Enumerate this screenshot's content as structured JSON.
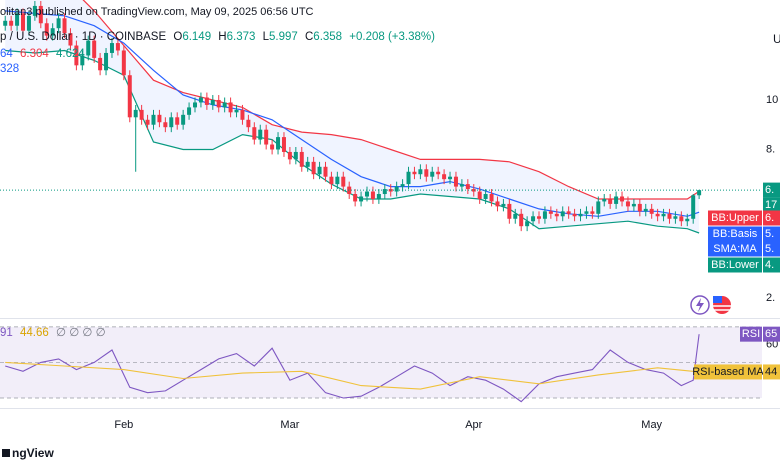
{
  "header": {
    "byline": "olitan3 published on TradingView.com, May 09, 2025 06:56 UTC",
    "symbol": "p / U.S. Dollar · 1D · COINBASE",
    "ohlc_labels": [
      "O",
      "H",
      "L",
      "C"
    ],
    "change": "+0.208 (+3.38%)",
    "bb_basis_value": "64",
    "sma_value": "328",
    "rsi_value": "91",
    "rsi_na": "∅ ∅ ∅ ∅",
    "currency": "U"
  },
  "footer": {
    "brand": "ngView"
  },
  "chart_data": [
    {
      "type": "candlestick",
      "open": [
        13.0,
        13.2,
        13.0,
        13.5,
        12.8,
        13.4,
        13.8,
        13.1,
        12.6,
        12.9,
        13.3,
        12.7,
        12.2,
        11.4,
        11.8,
        12.4,
        11.7,
        11.2,
        11.9,
        12.3,
        12.0,
        11.0,
        9.3,
        9.6,
        9.2,
        9.0,
        9.4,
        9.1,
        8.9,
        9.3,
        9.0,
        9.4,
        9.7,
        9.9,
        10.1,
        9.8,
        10.0,
        9.7,
        9.9,
        9.5,
        9.6,
        9.2,
        8.9,
        8.4,
        8.8,
        8.2,
        8.0,
        8.5,
        7.9,
        7.6,
        7.9,
        7.3,
        7.5,
        7.0,
        7.3,
        6.9,
        6.6,
        6.9,
        6.5,
        6.2,
        5.9,
        6.1,
        6.3,
        6.0,
        6.2,
        6.4,
        6.3,
        6.5,
        6.6,
        7.1,
        7.0,
        7.2,
        6.9,
        7.1,
        7.0,
        6.8,
        6.9,
        6.5,
        6.6,
        6.4,
        6.3,
        6.0,
        6.2,
        5.9,
        5.7,
        5.8,
        5.2,
        5.4,
        4.9,
        5.1,
        5.3,
        5.2,
        5.5,
        5.4,
        5.3,
        5.5,
        5.4,
        5.3,
        5.4,
        5.5,
        5.4,
        5.9,
        6.0,
        5.8,
        6.1,
        5.9,
        5.7,
        5.8,
        5.5,
        5.6,
        5.4,
        5.3,
        5.4,
        5.2,
        5.3,
        5.1,
        5.2,
        6.149
      ],
      "high": [
        13.4,
        13.4,
        13.7,
        13.7,
        13.6,
        14.0,
        14.0,
        13.3,
        13.1,
        13.5,
        13.5,
        12.9,
        12.4,
        12.0,
        12.6,
        12.6,
        11.9,
        12.1,
        12.5,
        12.5,
        12.2,
        11.2,
        9.8,
        9.8,
        9.4,
        9.6,
        9.6,
        9.3,
        9.5,
        9.5,
        9.6,
        9.9,
        10.1,
        10.3,
        10.3,
        10.2,
        10.2,
        10.1,
        10.1,
        9.8,
        9.8,
        9.4,
        9.1,
        9.0,
        9.0,
        8.4,
        8.7,
        8.7,
        8.1,
        8.1,
        8.1,
        7.7,
        7.7,
        7.5,
        7.5,
        7.1,
        7.1,
        7.1,
        6.7,
        6.4,
        6.3,
        6.5,
        6.5,
        6.4,
        6.6,
        6.6,
        6.7,
        6.8,
        7.3,
        7.3,
        7.4,
        7.4,
        7.3,
        7.3,
        7.2,
        7.1,
        7.1,
        6.8,
        6.8,
        6.6,
        6.5,
        6.4,
        6.4,
        6.1,
        6.0,
        6.0,
        5.6,
        5.6,
        5.3,
        5.5,
        5.5,
        5.7,
        5.7,
        5.6,
        5.7,
        5.7,
        5.6,
        5.6,
        5.7,
        5.7,
        6.1,
        6.2,
        6.2,
        6.3,
        6.3,
        6.1,
        6.0,
        6.0,
        5.8,
        5.8,
        5.6,
        5.6,
        5.6,
        5.5,
        5.5,
        5.4,
        6.2,
        6.373
      ],
      "low": [
        12.8,
        12.8,
        12.8,
        12.6,
        12.6,
        13.2,
        12.9,
        12.4,
        12.4,
        12.7,
        12.5,
        12.0,
        11.2,
        11.2,
        11.6,
        11.5,
        11.0,
        11.0,
        11.7,
        11.8,
        10.8,
        9.1,
        7.1,
        9.0,
        8.8,
        8.8,
        8.9,
        8.7,
        8.7,
        8.8,
        8.8,
        9.2,
        9.5,
        9.7,
        9.6,
        9.6,
        9.5,
        9.5,
        9.3,
        9.3,
        9.0,
        8.7,
        8.2,
        8.2,
        8.0,
        7.8,
        7.8,
        7.7,
        7.4,
        7.4,
        7.1,
        7.1,
        6.8,
        6.8,
        6.7,
        6.4,
        6.4,
        6.3,
        6.0,
        5.7,
        5.7,
        5.9,
        5.8,
        5.8,
        6.0,
        6.1,
        6.1,
        6.3,
        6.4,
        6.8,
        6.8,
        6.7,
        6.7,
        6.8,
        6.6,
        6.6,
        6.3,
        6.3,
        6.2,
        6.1,
        5.8,
        5.8,
        5.7,
        5.5,
        5.5,
        5.0,
        5.0,
        4.7,
        4.7,
        4.9,
        5.0,
        5.0,
        5.2,
        5.1,
        5.1,
        5.2,
        5.1,
        5.1,
        5.2,
        5.2,
        5.2,
        5.7,
        5.6,
        5.6,
        5.7,
        5.5,
        5.5,
        5.3,
        5.3,
        5.2,
        5.1,
        5.1,
        5.0,
        5.0,
        4.9,
        4.9,
        5.0,
        5.997
      ],
      "close": [
        13.2,
        13.0,
        13.5,
        12.8,
        13.4,
        13.8,
        13.1,
        12.6,
        12.9,
        13.3,
        12.7,
        12.2,
        11.4,
        11.8,
        12.4,
        11.7,
        11.2,
        11.9,
        12.3,
        12.0,
        11.0,
        9.3,
        9.6,
        9.2,
        9.0,
        9.4,
        9.1,
        8.9,
        9.3,
        9.0,
        9.4,
        9.7,
        9.9,
        10.1,
        9.8,
        10.0,
        9.7,
        9.9,
        9.5,
        9.6,
        9.2,
        8.9,
        8.4,
        8.8,
        8.2,
        8.0,
        8.5,
        7.9,
        7.6,
        7.9,
        7.3,
        7.5,
        7.0,
        7.3,
        6.9,
        6.6,
        6.9,
        6.5,
        6.2,
        5.9,
        6.1,
        6.3,
        6.0,
        6.2,
        6.4,
        6.3,
        6.5,
        6.6,
        7.1,
        7.0,
        7.2,
        6.9,
        7.1,
        7.0,
        6.8,
        6.9,
        6.5,
        6.6,
        6.4,
        6.3,
        6.0,
        6.2,
        5.9,
        5.7,
        5.8,
        5.2,
        5.4,
        4.9,
        5.1,
        5.3,
        5.2,
        5.5,
        5.4,
        5.3,
        5.5,
        5.4,
        5.3,
        5.4,
        5.5,
        5.4,
        5.9,
        6.0,
        5.8,
        6.1,
        5.9,
        5.7,
        5.8,
        5.5,
        5.6,
        5.4,
        5.3,
        5.4,
        5.2,
        5.3,
        5.1,
        5.2,
        6.149,
        6.358
      ],
      "up_color": "#089981",
      "down_color": "#f23645",
      "xlim": [
        -0.88,
        127.6
      ],
      "xticks": [
        {
          "value": 20,
          "label": "Feb"
        },
        {
          "value": 48,
          "label": "Mar"
        },
        {
          "value": 79,
          "label": "Apr"
        },
        {
          "value": 109,
          "label": "May"
        }
      ],
      "ylim": [
        1.19,
        14.04
      ],
      "yticks": [
        {
          "value": 10,
          "label": "10"
        },
        {
          "value": 8,
          "label": "8."
        },
        {
          "value": 2,
          "label": "2."
        }
      ],
      "band_fill": "rgba(41,98,255,0.07)",
      "bands": [
        {
          "name": "BB:Upper",
          "tag": "6.",
          "color": "#f23645",
          "x": [
            0,
            5,
            10,
            15,
            20,
            25,
            30,
            35,
            40,
            45,
            50,
            55,
            60,
            65,
            70,
            75,
            80,
            85,
            90,
            95,
            100,
            105,
            110,
            115,
            117
          ],
          "values": [
            15.5,
            15.2,
            14.8,
            13.6,
            12.2,
            10.8,
            10.3,
            10.0,
            9.7,
            9.0,
            8.7,
            8.6,
            8.4,
            8.0,
            7.6,
            7.6,
            7.6,
            7.5,
            7.1,
            6.5,
            6.0,
            6.0,
            6.0,
            6.0,
            6.304
          ]
        },
        {
          "name": "BB:Basis",
          "tag": "5.",
          "color": "#2962ff",
          "x": [
            0,
            5,
            10,
            15,
            20,
            25,
            30,
            35,
            40,
            45,
            50,
            55,
            60,
            65,
            70,
            75,
            80,
            85,
            90,
            95,
            100,
            105,
            110,
            115,
            117
          ],
          "values": [
            13.6,
            13.5,
            13.4,
            13.0,
            12.3,
            11.2,
            10.2,
            9.8,
            9.6,
            9.2,
            8.4,
            7.6,
            6.9,
            6.5,
            6.5,
            6.7,
            6.4,
            6.0,
            5.6,
            5.4,
            5.3,
            5.5,
            5.5,
            5.3,
            5.464
          ]
        },
        {
          "name": "BB:Lower",
          "tag": "4.",
          "color": "#089981",
          "x": [
            0,
            5,
            10,
            15,
            20,
            25,
            30,
            35,
            40,
            45,
            50,
            55,
            60,
            65,
            70,
            75,
            80,
            85,
            90,
            95,
            100,
            105,
            110,
            115,
            117
          ],
          "values": [
            12.0,
            11.9,
            12.0,
            11.6,
            11.0,
            8.3,
            8.0,
            8.0,
            8.6,
            8.4,
            7.4,
            6.6,
            6.0,
            6.0,
            6.2,
            6.1,
            6.0,
            5.6,
            4.8,
            4.9,
            5.0,
            5.1,
            4.9,
            4.8,
            4.624
          ]
        }
      ],
      "extra_tag": {
        "name": "SMA:MA",
        "tag": "5.",
        "color": "#2962ff"
      },
      "price_tags": [
        {
          "text": "6.",
          "color": "#089981"
        },
        {
          "text": "17",
          "color": "#089981"
        }
      ]
    },
    {
      "type": "line",
      "xlim": [
        -0.88,
        127.6
      ],
      "ylim": [
        25,
        75
      ],
      "yticks": [
        60
      ],
      "levels": [
        70,
        50,
        30
      ],
      "level_fill": "rgba(126,87,194,0.1)",
      "series": [
        {
          "name": "RSI",
          "tag": "65",
          "color": "#7e57c2",
          "x": [
            0,
            3,
            6,
            9,
            12,
            15,
            18,
            21,
            24,
            27,
            30,
            33,
            36,
            39,
            42,
            45,
            48,
            51,
            54,
            57,
            60,
            63,
            66,
            69,
            72,
            75,
            78,
            81,
            84,
            87,
            90,
            93,
            96,
            99,
            102,
            105,
            108,
            111,
            114,
            116,
            117
          ],
          "values": [
            48,
            45,
            50,
            52,
            46,
            50,
            57,
            36,
            33,
            34,
            40,
            46,
            52,
            55,
            48,
            58,
            40,
            44,
            33,
            30,
            31,
            36,
            42,
            48,
            44,
            37,
            42,
            40,
            35,
            28,
            38,
            42,
            44,
            46,
            57,
            50,
            46,
            44,
            37,
            40,
            65.91
          ]
        },
        {
          "name": "RSI-based MA",
          "tag": "44",
          "color": "#f0c23b",
          "x": [
            0,
            10,
            20,
            30,
            40,
            50,
            60,
            70,
            80,
            90,
            100,
            110,
            117
          ],
          "values": [
            50,
            48,
            46,
            41,
            44,
            45,
            37,
            35,
            42,
            38,
            43,
            47,
            44.66
          ]
        }
      ]
    }
  ]
}
